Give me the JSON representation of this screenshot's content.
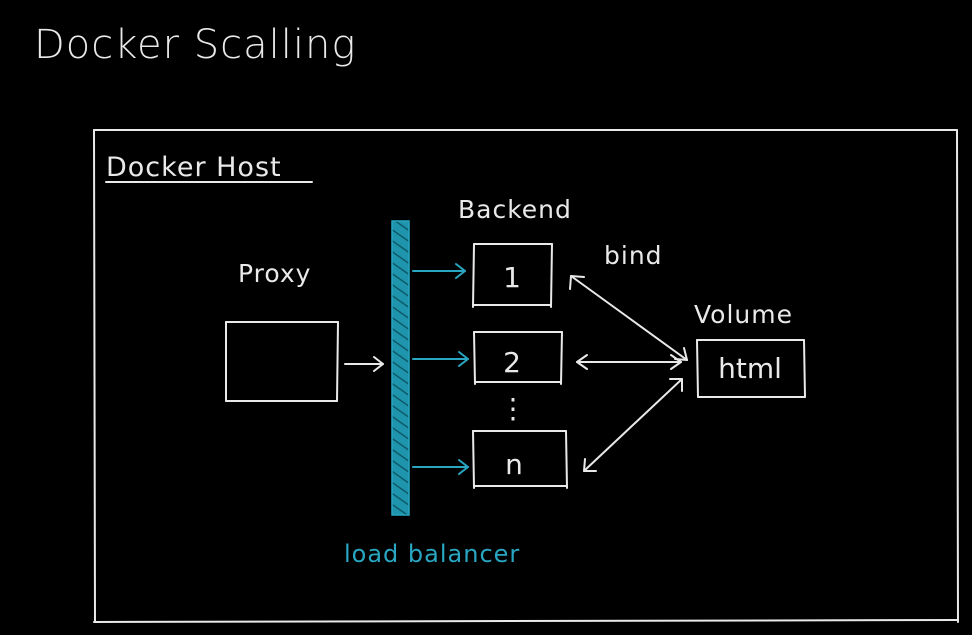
{
  "title": "Docker Scalling",
  "host": {
    "label": "Docker Host"
  },
  "proxy": {
    "label": "Proxy"
  },
  "load_balancer": {
    "label": "load balancer"
  },
  "backend": {
    "label": "Backend",
    "instances": [
      "1",
      "2",
      "n"
    ],
    "ellipsis": "⋮"
  },
  "bind_label": "bind",
  "volume": {
    "label": "Volume",
    "content": "html"
  },
  "colors": {
    "background": "#000000",
    "ink": "#e9e9e9",
    "accent": "#29a7c2"
  }
}
